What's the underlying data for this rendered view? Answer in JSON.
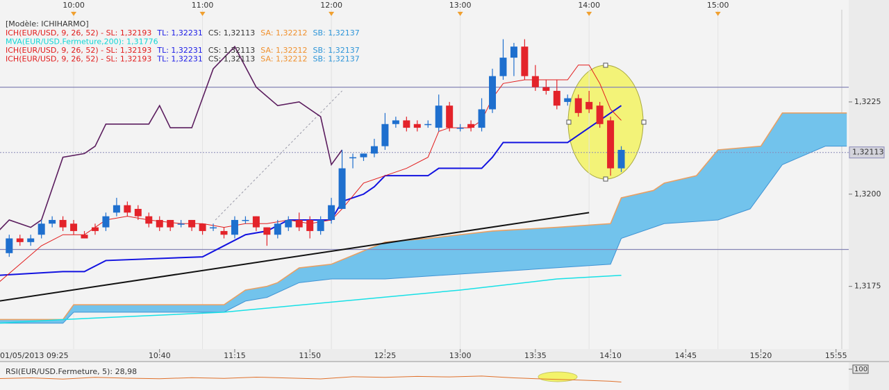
{
  "legend": {
    "model": "[Modèle: ICHIHARMO]",
    "lines": [
      [
        {
          "text": "ICH(EUR/USD, 9, 26, 52) -  SL: 1,32193",
          "color": "#e21c1c"
        },
        {
          "text": "TL: 1,32231",
          "color": "#1a1ae6"
        },
        {
          "text": "CS: 1,32113",
          "color": "#333333"
        },
        {
          "text": "SA: 1,32212",
          "color": "#f0902c"
        },
        {
          "text": "SB: 1,32137",
          "color": "#2d95d8"
        }
      ],
      [
        {
          "text": "MVA(EUR/USD.Fermeture,200): 1,31776",
          "color": "#12d6d6"
        }
      ],
      [
        {
          "text": "ICH(EUR/USD, 9, 26, 52) -  SL: 1,32193",
          "color": "#e21c1c"
        },
        {
          "text": "TL: 1,32231",
          "color": "#1a1ae6"
        },
        {
          "text": "CS: 1,32113",
          "color": "#333333"
        },
        {
          "text": "SA: 1,32212",
          "color": "#f0902c"
        },
        {
          "text": "SB: 1,32137",
          "color": "#2d95d8"
        }
      ],
      [
        {
          "text": "ICH(EUR/USD, 9, 26, 52) -  SL: 1,32193",
          "color": "#e21c1c"
        },
        {
          "text": "TL: 1,32231",
          "color": "#1a1ae6"
        },
        {
          "text": "CS: 1,32113",
          "color": "#333333"
        },
        {
          "text": "SA: 1,32212",
          "color": "#f0902c"
        },
        {
          "text": "SB: 1,32137",
          "color": "#2d95d8"
        }
      ]
    ]
  },
  "chart_data": {
    "type": "candlestick",
    "xlim": [
      565.7,
      960.9
    ],
    "ylim": [
      1.3158,
      1.325
    ],
    "xticks": [
      {
        "value": 565,
        "label": "01/05/2013 09:25"
      },
      {
        "value": 640,
        "label": "10:40"
      },
      {
        "value": 675,
        "label": "11:15"
      },
      {
        "value": 710,
        "label": "11:50"
      },
      {
        "value": 745,
        "label": "12:25"
      },
      {
        "value": 780,
        "label": "13:00"
      },
      {
        "value": 815,
        "label": "13:35"
      },
      {
        "value": 850,
        "label": "14:10"
      },
      {
        "value": 885,
        "label": "14:45"
      },
      {
        "value": 920,
        "label": "15:20"
      },
      {
        "value": 955,
        "label": "15:55"
      }
    ],
    "xticks_top": [
      {
        "value": 600,
        "label": "10:00"
      },
      {
        "value": 660,
        "label": "11:00"
      },
      {
        "value": 720,
        "label": "12:00"
      },
      {
        "value": 780,
        "label": "13:00"
      },
      {
        "value": 840,
        "label": "14:00"
      },
      {
        "value": 900,
        "label": "15:00"
      }
    ],
    "yticks": [
      {
        "value": 1.3175,
        "label": "1,3175"
      },
      {
        "value": 1.32,
        "label": "1,3200"
      },
      {
        "value": 1.3225,
        "label": "1,3225"
      }
    ],
    "last_price": {
      "value": 1.32113,
      "label": "1,32113"
    },
    "colors": {
      "up": "#1e6fce",
      "down": "#e3232a"
    },
    "candles": {
      "x": [
        570,
        575,
        580,
        585,
        590,
        595,
        600,
        605,
        610,
        615,
        620,
        625,
        630,
        635,
        640,
        645,
        650,
        655,
        660,
        665,
        670,
        675,
        680,
        685,
        690,
        695,
        700,
        705,
        710,
        715,
        720,
        725,
        730,
        735,
        740,
        745,
        750,
        755,
        760,
        765,
        770,
        775,
        780,
        785,
        790,
        795,
        800,
        805,
        810,
        815,
        820,
        825,
        830,
        835,
        840,
        845,
        850,
        855
      ],
      "open": [
        1.3184,
        1.3188,
        1.3187,
        1.3189,
        1.3192,
        1.3193,
        1.3192,
        1.3189,
        1.3191,
        1.3191,
        1.3195,
        1.3197,
        1.3196,
        1.3194,
        1.3193,
        1.3193,
        1.3192,
        1.3193,
        1.3192,
        1.3191,
        1.319,
        1.3189,
        1.3193,
        1.3194,
        1.3191,
        1.3189,
        1.3191,
        1.3193,
        1.3193,
        1.319,
        1.3193,
        1.3196,
        1.321,
        1.321,
        1.3211,
        1.3213,
        1.3219,
        1.322,
        1.3219,
        1.3219,
        1.3218,
        1.3224,
        1.3218,
        1.3219,
        1.3218,
        1.3223,
        1.3232,
        1.3237,
        1.324,
        1.3232,
        1.3229,
        1.3228,
        1.3225,
        1.3226,
        1.3225,
        1.3224,
        1.322,
        1.3207
      ],
      "high": [
        1.3189,
        1.3189,
        1.3189,
        1.3193,
        1.3194,
        1.3194,
        1.3193,
        1.319,
        1.3192,
        1.3195,
        1.3199,
        1.3198,
        1.3197,
        1.3195,
        1.3194,
        1.3193,
        1.3193,
        1.3193,
        1.3192,
        1.3192,
        1.3191,
        1.3194,
        1.3194,
        1.3194,
        1.3191,
        1.3193,
        1.3194,
        1.3195,
        1.3194,
        1.3194,
        1.3199,
        1.3212,
        1.3211,
        1.3211,
        1.3215,
        1.3222,
        1.3221,
        1.3221,
        1.322,
        1.322,
        1.3227,
        1.3225,
        1.3219,
        1.322,
        1.3226,
        1.3234,
        1.3242,
        1.3241,
        1.3242,
        1.3235,
        1.3231,
        1.3231,
        1.3227,
        1.3227,
        1.3228,
        1.3225,
        1.3221,
        1.3213
      ],
      "low": [
        1.3183,
        1.3186,
        1.3186,
        1.3188,
        1.3191,
        1.319,
        1.3189,
        1.3188,
        1.3189,
        1.319,
        1.3194,
        1.3194,
        1.3193,
        1.3191,
        1.319,
        1.319,
        1.3191,
        1.319,
        1.3189,
        1.319,
        1.3188,
        1.3188,
        1.3192,
        1.319,
        1.3186,
        1.3188,
        1.319,
        1.319,
        1.3188,
        1.3189,
        1.3192,
        1.3196,
        1.3207,
        1.3209,
        1.321,
        1.3212,
        1.3218,
        1.3217,
        1.3217,
        1.3218,
        1.3217,
        1.3217,
        1.3217,
        1.3217,
        1.3217,
        1.3222,
        1.3231,
        1.3232,
        1.3231,
        1.3228,
        1.3227,
        1.3223,
        1.3224,
        1.3221,
        1.3222,
        1.3218,
        1.3205,
        1.3206
      ],
      "close": [
        1.3188,
        1.3187,
        1.3188,
        1.3192,
        1.3193,
        1.3191,
        1.319,
        1.3188,
        1.319,
        1.3194,
        1.3197,
        1.3195,
        1.3194,
        1.3192,
        1.3191,
        1.3191,
        1.3192,
        1.3191,
        1.319,
        1.3191,
        1.3189,
        1.3193,
        1.3193,
        1.3191,
        1.3189,
        1.3192,
        1.3193,
        1.3191,
        1.319,
        1.3193,
        1.3197,
        1.3207,
        1.321,
        1.3211,
        1.3213,
        1.3219,
        1.322,
        1.3218,
        1.3218,
        1.3219,
        1.3224,
        1.3218,
        1.3218,
        1.3218,
        1.3223,
        1.3232,
        1.3237,
        1.324,
        1.3232,
        1.3229,
        1.3228,
        1.3224,
        1.3226,
        1.3222,
        1.3223,
        1.3219,
        1.3207,
        1.3212
      ]
    },
    "cloud": {
      "color": "#72c3ec",
      "color_a": "#e8a064",
      "color_b": "#3f93d4",
      "x_a": [
        565,
        595,
        600,
        670,
        680,
        690,
        695,
        705,
        720,
        745,
        765,
        795,
        825,
        850,
        855,
        870,
        875,
        890,
        900,
        920,
        930,
        960
      ],
      "a": [
        1.3166,
        1.3166,
        1.317,
        1.317,
        1.3174,
        1.3175,
        1.3176,
        1.318,
        1.3181,
        1.3187,
        1.3188,
        1.319,
        1.3191,
        1.3192,
        1.3199,
        1.3201,
        1.3203,
        1.3205,
        1.3212,
        1.3213,
        1.3222,
        1.3222
      ],
      "x_b": [
        565,
        595,
        600,
        670,
        680,
        690,
        705,
        720,
        745,
        850,
        855,
        875,
        900,
        915,
        930,
        950,
        960
      ],
      "b": [
        1.3165,
        1.3165,
        1.3168,
        1.3168,
        1.3171,
        1.3172,
        1.3176,
        1.3177,
        1.3177,
        1.3181,
        1.3188,
        1.3192,
        1.3193,
        1.3196,
        1.3208,
        1.3213,
        1.3213
      ]
    },
    "hlines": {
      "color": "#8585b5",
      "values": [
        1.3229,
        1.3185
      ]
    },
    "lines": [
      {
        "color": "#16e0e6",
        "width": 1.5,
        "x": [
          565,
          595,
          670,
          780,
          825,
          855
        ],
        "values": [
          1.3165,
          1.3166,
          1.3168,
          1.3174,
          1.3177,
          1.3178
        ]
      },
      {
        "color": "#111111",
        "width": 2,
        "x": [
          565,
          840
        ],
        "values": [
          1.3171,
          1.3195
        ]
      },
      {
        "color": "#9a9aa8",
        "width": 1,
        "dash": "3,3",
        "x": [
          666,
          725
        ],
        "values": [
          1.3193,
          1.3228
        ]
      },
      {
        "color": "#5b1d5e",
        "width": 1.6,
        "x": [
          565,
          570,
          580,
          585,
          595,
          605,
          610,
          615,
          625,
          635,
          640,
          645,
          655,
          665,
          675,
          685,
          695,
          705,
          715,
          720,
          725
        ],
        "values": [
          1.319,
          1.3193,
          1.3191,
          1.3193,
          1.321,
          1.3211,
          1.3213,
          1.3219,
          1.3219,
          1.3219,
          1.3224,
          1.3218,
          1.3218,
          1.3234,
          1.324,
          1.3229,
          1.3224,
          1.3225,
          1.3221,
          1.3208,
          1.3212
        ]
      },
      {
        "color": "#1212e0",
        "width": 2,
        "x": [
          565,
          595,
          605,
          615,
          660,
          670,
          680,
          690,
          700,
          720,
          725,
          735,
          740,
          745,
          765,
          770,
          790,
          795,
          800,
          830,
          835,
          845,
          855
        ],
        "values": [
          1.3178,
          1.3179,
          1.3179,
          1.3182,
          1.3183,
          1.3186,
          1.3189,
          1.319,
          1.3193,
          1.3193,
          1.3198,
          1.32,
          1.3202,
          1.3205,
          1.3205,
          1.3207,
          1.3207,
          1.321,
          1.3214,
          1.3214,
          1.3216,
          1.322,
          1.3224
        ]
      },
      {
        "color": "#e21c1c",
        "width": 1,
        "x": [
          565,
          575,
          585,
          595,
          605,
          615,
          625,
          635,
          650,
          660,
          670,
          680,
          690,
          700,
          710,
          720,
          725,
          735,
          745,
          755,
          765,
          770,
          775,
          785,
          790,
          795,
          800,
          810,
          820,
          830,
          835,
          840,
          845,
          850,
          855
        ],
        "values": [
          1.3176,
          1.3181,
          1.3186,
          1.3189,
          1.3189,
          1.3193,
          1.3194,
          1.3193,
          1.3192,
          1.3192,
          1.3191,
          1.3192,
          1.3192,
          1.3193,
          1.3192,
          1.3193,
          1.3196,
          1.3203,
          1.3205,
          1.3207,
          1.321,
          1.3217,
          1.3218,
          1.3218,
          1.322,
          1.3226,
          1.323,
          1.3231,
          1.3231,
          1.3231,
          1.3235,
          1.3235,
          1.323,
          1.3223,
          1.322
        ]
      }
    ],
    "rsi": {
      "label": "RSI(EUR/USD.Fermeture, 5): 28,98",
      "color": "#e0702a",
      "ylim": [
        0,
        100
      ],
      "yticks": [
        100
      ],
      "x": [
        565,
        580,
        595,
        610,
        625,
        640,
        655,
        670,
        685,
        700,
        715,
        730,
        745,
        760,
        775,
        790,
        805,
        820,
        835,
        850,
        855
      ],
      "values": [
        48,
        52,
        45,
        55,
        50,
        47,
        53,
        49,
        56,
        51,
        46,
        58,
        55,
        60,
        57,
        62,
        52,
        45,
        40,
        33,
        29
      ]
    }
  }
}
